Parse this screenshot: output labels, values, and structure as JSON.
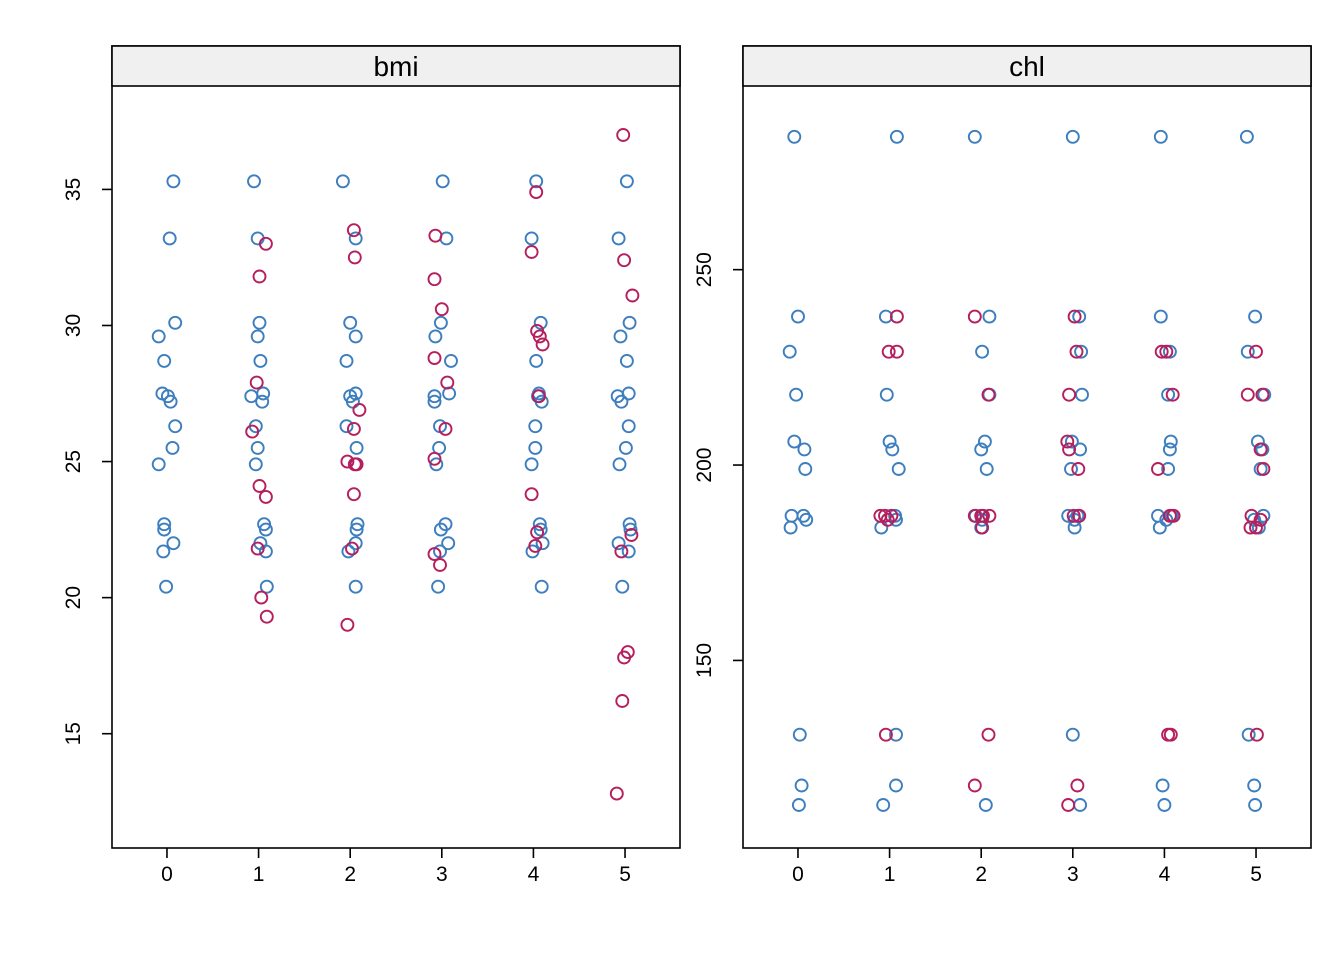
{
  "chart_data": [
    {
      "type": "scatter",
      "title": "bmi",
      "xlabel": "",
      "ylabel": "",
      "x_ticks": [
        "0",
        "1",
        "2",
        "3",
        "4",
        "5"
      ],
      "y_ticks": [
        15,
        20,
        25,
        30,
        35
      ],
      "xlim": [
        -0.6,
        5.6
      ],
      "ylim": [
        10.8,
        38.8
      ],
      "grid": false,
      "colors": {
        "observed": "#3d7ebf",
        "imputed": "#b51f5e"
      },
      "series": [
        {
          "kind": "observed",
          "points": [
            [
              0.07,
              35.3
            ],
            [
              0.03,
              33.2
            ],
            [
              0.09,
              30.1
            ],
            [
              -0.09,
              29.6
            ],
            [
              -0.03,
              28.7
            ],
            [
              -0.05,
              27.5
            ],
            [
              0.01,
              27.4
            ],
            [
              0.04,
              27.2
            ],
            [
              0.09,
              26.3
            ],
            [
              0.06,
              25.5
            ],
            [
              -0.09,
              24.9
            ],
            [
              -0.03,
              22.7
            ],
            [
              -0.03,
              22.5
            ],
            [
              0.07,
              22.0
            ],
            [
              -0.04,
              21.7
            ],
            [
              -0.01,
              20.4
            ],
            [
              0.95,
              35.3
            ],
            [
              0.99,
              33.2
            ],
            [
              1.01,
              30.1
            ],
            [
              0.99,
              29.6
            ],
            [
              1.02,
              28.7
            ],
            [
              1.05,
              27.5
            ],
            [
              0.92,
              27.4
            ],
            [
              1.04,
              27.2
            ],
            [
              0.97,
              26.3
            ],
            [
              0.99,
              25.5
            ],
            [
              0.97,
              24.9
            ],
            [
              1.06,
              22.7
            ],
            [
              1.08,
              22.5
            ],
            [
              1.02,
              22.0
            ],
            [
              1.08,
              21.7
            ],
            [
              1.09,
              20.4
            ],
            [
              1.92,
              35.3
            ],
            [
              2.0,
              30.1
            ],
            [
              2.06,
              29.6
            ],
            [
              1.96,
              28.7
            ],
            [
              2.06,
              27.5
            ],
            [
              2.0,
              27.4
            ],
            [
              2.03,
              27.2
            ],
            [
              1.96,
              26.3
            ],
            [
              2.07,
              25.5
            ],
            [
              2.08,
              22.7
            ],
            [
              2.07,
              22.5
            ],
            [
              2.06,
              22.0
            ],
            [
              1.98,
              21.7
            ],
            [
              2.06,
              20.4
            ],
            [
              2.06,
              33.2
            ],
            [
              3.01,
              35.3
            ],
            [
              3.05,
              33.2
            ],
            [
              2.99,
              30.1
            ],
            [
              2.93,
              29.6
            ],
            [
              3.1,
              28.7
            ],
            [
              3.08,
              27.5
            ],
            [
              2.92,
              27.4
            ],
            [
              2.92,
              27.2
            ],
            [
              2.98,
              26.3
            ],
            [
              2.97,
              25.5
            ],
            [
              2.94,
              24.9
            ],
            [
              3.04,
              22.7
            ],
            [
              2.99,
              22.5
            ],
            [
              3.07,
              22.0
            ],
            [
              2.98,
              21.7
            ],
            [
              2.96,
              20.4
            ],
            [
              4.03,
              35.3
            ],
            [
              3.98,
              33.2
            ],
            [
              4.08,
              30.1
            ],
            [
              4.03,
              28.7
            ],
            [
              4.06,
              27.5
            ],
            [
              4.05,
              27.4
            ],
            [
              4.09,
              27.2
            ],
            [
              4.02,
              26.3
            ],
            [
              4.02,
              25.5
            ],
            [
              3.98,
              24.9
            ],
            [
              4.07,
              22.7
            ],
            [
              4.08,
              22.5
            ],
            [
              4.1,
              22.0
            ],
            [
              3.99,
              21.7
            ],
            [
              4.09,
              20.4
            ],
            [
              5.02,
              35.3
            ],
            [
              4.93,
              33.2
            ],
            [
              5.05,
              30.1
            ],
            [
              4.95,
              29.6
            ],
            [
              5.02,
              28.7
            ],
            [
              5.04,
              27.5
            ],
            [
              4.92,
              27.4
            ],
            [
              4.96,
              27.2
            ],
            [
              5.04,
              26.3
            ],
            [
              5.01,
              25.5
            ],
            [
              4.94,
              24.9
            ],
            [
              5.05,
              22.7
            ],
            [
              5.06,
              22.5
            ],
            [
              4.93,
              22.0
            ],
            [
              5.04,
              21.7
            ],
            [
              4.97,
              20.4
            ]
          ]
        },
        {
          "kind": "imputed",
          "points": [
            [
              0.98,
              27.9
            ],
            [
              1.01,
              31.8
            ],
            [
              1.08,
              33.0
            ],
            [
              0.93,
              26.1
            ],
            [
              1.01,
              24.1
            ],
            [
              1.08,
              23.7
            ],
            [
              0.99,
              21.8
            ],
            [
              1.03,
              20.0
            ],
            [
              1.09,
              19.3
            ],
            [
              2.04,
              33.5
            ],
            [
              2.05,
              32.5
            ],
            [
              2.1,
              26.9
            ],
            [
              2.04,
              26.2
            ],
            [
              1.97,
              25.0
            ],
            [
              2.05,
              24.9
            ],
            [
              2.07,
              24.9
            ],
            [
              2.04,
              23.8
            ],
            [
              2.02,
              21.8
            ],
            [
              1.97,
              19.0
            ],
            [
              2.93,
              33.3
            ],
            [
              2.92,
              31.7
            ],
            [
              3.0,
              30.6
            ],
            [
              2.92,
              28.8
            ],
            [
              3.06,
              27.9
            ],
            [
              3.04,
              26.2
            ],
            [
              2.92,
              25.1
            ],
            [
              2.92,
              21.6
            ],
            [
              2.98,
              21.2
            ],
            [
              4.03,
              34.9
            ],
            [
              3.98,
              32.7
            ],
            [
              4.04,
              29.8
            ],
            [
              4.07,
              29.6
            ],
            [
              4.1,
              29.3
            ],
            [
              4.06,
              27.4
            ],
            [
              3.98,
              23.8
            ],
            [
              4.04,
              22.4
            ],
            [
              4.02,
              21.9
            ],
            [
              4.98,
              37.0
            ],
            [
              4.99,
              32.4
            ],
            [
              5.08,
              31.1
            ],
            [
              5.07,
              22.3
            ],
            [
              4.96,
              21.7
            ],
            [
              5.03,
              18.0
            ],
            [
              4.99,
              17.8
            ],
            [
              4.97,
              16.2
            ],
            [
              4.91,
              12.8
            ]
          ]
        }
      ]
    },
    {
      "type": "scatter",
      "title": "chl",
      "xlabel": "",
      "ylabel": "",
      "x_ticks": [
        "0",
        "1",
        "2",
        "3",
        "4",
        "5"
      ],
      "y_ticks": [
        150,
        200,
        250
      ],
      "xlim": [
        -0.6,
        5.6
      ],
      "ylim": [
        102,
        297
      ],
      "grid": false,
      "colors": {
        "observed": "#3d7ebf",
        "imputed": "#b51f5e"
      },
      "series": [
        {
          "kind": "observed",
          "points": [
            [
              -0.04,
              284
            ],
            [
              0.0,
              238
            ],
            [
              -0.09,
              229
            ],
            [
              -0.02,
              218
            ],
            [
              -0.04,
              206
            ],
            [
              0.07,
              204
            ],
            [
              0.08,
              199
            ],
            [
              -0.07,
              187
            ],
            [
              0.06,
              187
            ],
            [
              0.09,
              186
            ],
            [
              -0.08,
              184
            ],
            [
              0.02,
              131
            ],
            [
              0.04,
              118
            ],
            [
              0.01,
              113
            ],
            [
              1.08,
              284
            ],
            [
              0.96,
              238
            ],
            [
              0.97,
              218
            ],
            [
              1.0,
              206
            ],
            [
              1.03,
              204
            ],
            [
              1.1,
              199
            ],
            [
              1.06,
              187
            ],
            [
              1.07,
              186
            ],
            [
              0.91,
              184
            ],
            [
              1.07,
              131
            ],
            [
              1.07,
              118
            ],
            [
              0.93,
              113
            ],
            [
              1.93,
              284
            ],
            [
              2.09,
              238
            ],
            [
              2.01,
              229
            ],
            [
              2.09,
              218
            ],
            [
              2.04,
              206
            ],
            [
              2.0,
              204
            ],
            [
              2.06,
              199
            ],
            [
              1.94,
              187
            ],
            [
              2.01,
              186
            ],
            [
              2.0,
              184
            ],
            [
              2.05,
              113
            ],
            [
              3.0,
              284
            ],
            [
              3.07,
              238
            ],
            [
              3.09,
              229
            ],
            [
              3.1,
              218
            ],
            [
              2.99,
              206
            ],
            [
              3.08,
              204
            ],
            [
              2.98,
              199
            ],
            [
              2.95,
              187
            ],
            [
              3.05,
              187
            ],
            [
              3.02,
              186
            ],
            [
              3.02,
              184
            ],
            [
              3.0,
              131
            ],
            [
              3.08,
              113
            ],
            [
              3.96,
              284
            ],
            [
              3.96,
              238
            ],
            [
              4.06,
              229
            ],
            [
              4.04,
              218
            ],
            [
              4.07,
              206
            ],
            [
              4.06,
              204
            ],
            [
              4.04,
              199
            ],
            [
              3.93,
              187
            ],
            [
              4.08,
              187
            ],
            [
              4.02,
              186
            ],
            [
              3.95,
              184
            ],
            [
              3.98,
              118
            ],
            [
              4.0,
              113
            ],
            [
              4.9,
              284
            ],
            [
              4.99,
              238
            ],
            [
              4.91,
              229
            ],
            [
              5.09,
              218
            ],
            [
              5.02,
              206
            ],
            [
              5.07,
              204
            ],
            [
              5.05,
              199
            ],
            [
              5.08,
              187
            ],
            [
              4.98,
              186
            ],
            [
              5.03,
              184
            ],
            [
              4.92,
              131
            ],
            [
              4.98,
              118
            ],
            [
              4.99,
              113
            ]
          ]
        },
        {
          "kind": "imputed",
          "points": [
            [
              1.08,
              238
            ],
            [
              0.99,
              229
            ],
            [
              1.08,
              229
            ],
            [
              0.9,
              187
            ],
            [
              0.95,
              187
            ],
            [
              0.98,
              186
            ],
            [
              1.02,
              187
            ],
            [
              0.96,
              131
            ],
            [
              1.93,
              238
            ],
            [
              2.08,
              218
            ],
            [
              1.93,
              187
            ],
            [
              2.0,
              187
            ],
            [
              2.02,
              187
            ],
            [
              2.09,
              187
            ],
            [
              2.01,
              184
            ],
            [
              2.08,
              131
            ],
            [
              1.93,
              118
            ],
            [
              3.02,
              238
            ],
            [
              3.04,
              229
            ],
            [
              2.96,
              218
            ],
            [
              2.94,
              206
            ],
            [
              2.96,
              204
            ],
            [
              3.06,
              199
            ],
            [
              3.07,
              187
            ],
            [
              3.01,
              187
            ],
            [
              3.05,
              118
            ],
            [
              2.95,
              113
            ],
            [
              3.97,
              229
            ],
            [
              4.02,
              229
            ],
            [
              3.93,
              199
            ],
            [
              4.09,
              218
            ],
            [
              4.06,
              187
            ],
            [
              4.1,
              187
            ],
            [
              4.04,
              131
            ],
            [
              4.07,
              131
            ],
            [
              4.91,
              218
            ],
            [
              5.0,
              229
            ],
            [
              5.07,
              218
            ],
            [
              5.05,
              204
            ],
            [
              5.08,
              199
            ],
            [
              4.95,
              187
            ],
            [
              4.94,
              184
            ],
            [
              5.0,
              184
            ],
            [
              5.05,
              186
            ],
            [
              5.01,
              131
            ]
          ]
        }
      ]
    }
  ]
}
